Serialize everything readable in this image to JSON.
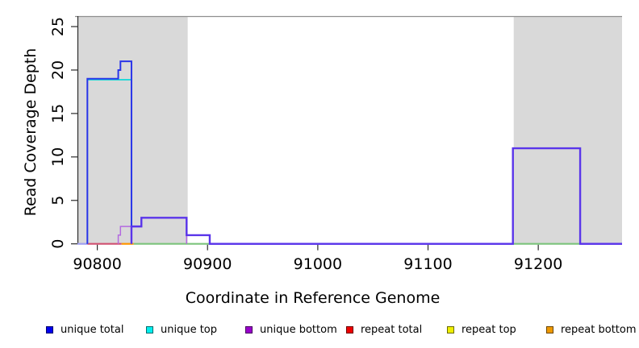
{
  "figure": {
    "xlabel": "Coordinate in Reference Genome",
    "ylabel": "Read Coverage Depth"
  },
  "legend": [
    {
      "label": "unique total",
      "color": "#0000ee"
    },
    {
      "label": "unique top",
      "color": "#00eeee"
    },
    {
      "label": "unique bottom",
      "color": "#9900cc"
    },
    {
      "label": "repeat total",
      "color": "#ee0000"
    },
    {
      "label": "repeat top",
      "color": "#eeee00"
    },
    {
      "label": "repeat bottom",
      "color": "#ee9900"
    }
  ],
  "chart_data": {
    "type": "line",
    "subtype": "step-function read coverage plot",
    "title": "",
    "xlabel": "Coordinate in Reference Genome",
    "ylabel": "Read Coverage Depth",
    "xlim": [
      90782,
      91276
    ],
    "ylim": [
      0,
      26
    ],
    "xticks": [
      90800,
      90900,
      91000,
      91100,
      91200
    ],
    "yticks": [
      0,
      5,
      10,
      15,
      20,
      25
    ],
    "grid": false,
    "legend_position": "bottom",
    "shaded_regions": [
      {
        "from": 90782,
        "to": 90882,
        "color": "#d9d9d9"
      },
      {
        "from": 91177,
        "to": 91276,
        "color": "#d9d9d9"
      }
    ],
    "series": [
      {
        "name": "unique total",
        "color": "#2a35e8",
        "segments": [
          [
            90791,
            90819,
            19
          ],
          [
            90819,
            90821,
            20
          ],
          [
            90821,
            90831,
            21
          ],
          [
            90831,
            90840,
            2
          ],
          [
            90840,
            90881,
            3
          ],
          [
            90881,
            90902,
            1
          ],
          [
            90902,
            91177,
            0
          ],
          [
            91177,
            91238,
            11
          ],
          [
            91238,
            91276,
            0
          ]
        ]
      },
      {
        "name": "unique top",
        "color": "#00d8d8",
        "segments": [
          [
            90791,
            90831,
            19
          ],
          [
            90831,
            91276,
            0
          ]
        ]
      },
      {
        "name": "unique bottom",
        "color": "#b36ae0",
        "segments": [
          [
            90782,
            90819,
            0
          ],
          [
            90819,
            90821,
            1
          ],
          [
            90821,
            90840,
            2
          ],
          [
            90840,
            90881,
            3
          ],
          [
            90881,
            90902,
            1
          ],
          [
            90902,
            91177,
            0
          ],
          [
            91177,
            91238,
            11
          ],
          [
            91238,
            91276,
            0
          ]
        ]
      },
      {
        "name": "repeat total",
        "color": "#d05070",
        "segments": [
          [
            90782,
            91276,
            0
          ]
        ]
      },
      {
        "name": "repeat top",
        "color": "#dddd00",
        "segments": [
          [
            90782,
            91276,
            0
          ]
        ]
      },
      {
        "name": "repeat bottom",
        "color": "#ff9500",
        "segments": [
          [
            90782,
            91276,
            0
          ]
        ]
      }
    ],
    "overlap_line_color": "#5a35ea",
    "baseline_segments": [
      {
        "from": 90782,
        "to": 90791,
        "color": "#a0a0f0"
      },
      {
        "from": 90791,
        "to": 90822,
        "color": "#d05070"
      },
      {
        "from": 90822,
        "to": 90833,
        "color": "#ff9500"
      },
      {
        "from": 90833,
        "to": 90902,
        "color": "#7cc47c"
      },
      {
        "from": 90902,
        "to": 91177,
        "color": "#6a4aee"
      },
      {
        "from": 91177,
        "to": 91238,
        "color": "#7cc47c"
      },
      {
        "from": 91238,
        "to": 91276,
        "color": "#6a4aee"
      }
    ]
  }
}
